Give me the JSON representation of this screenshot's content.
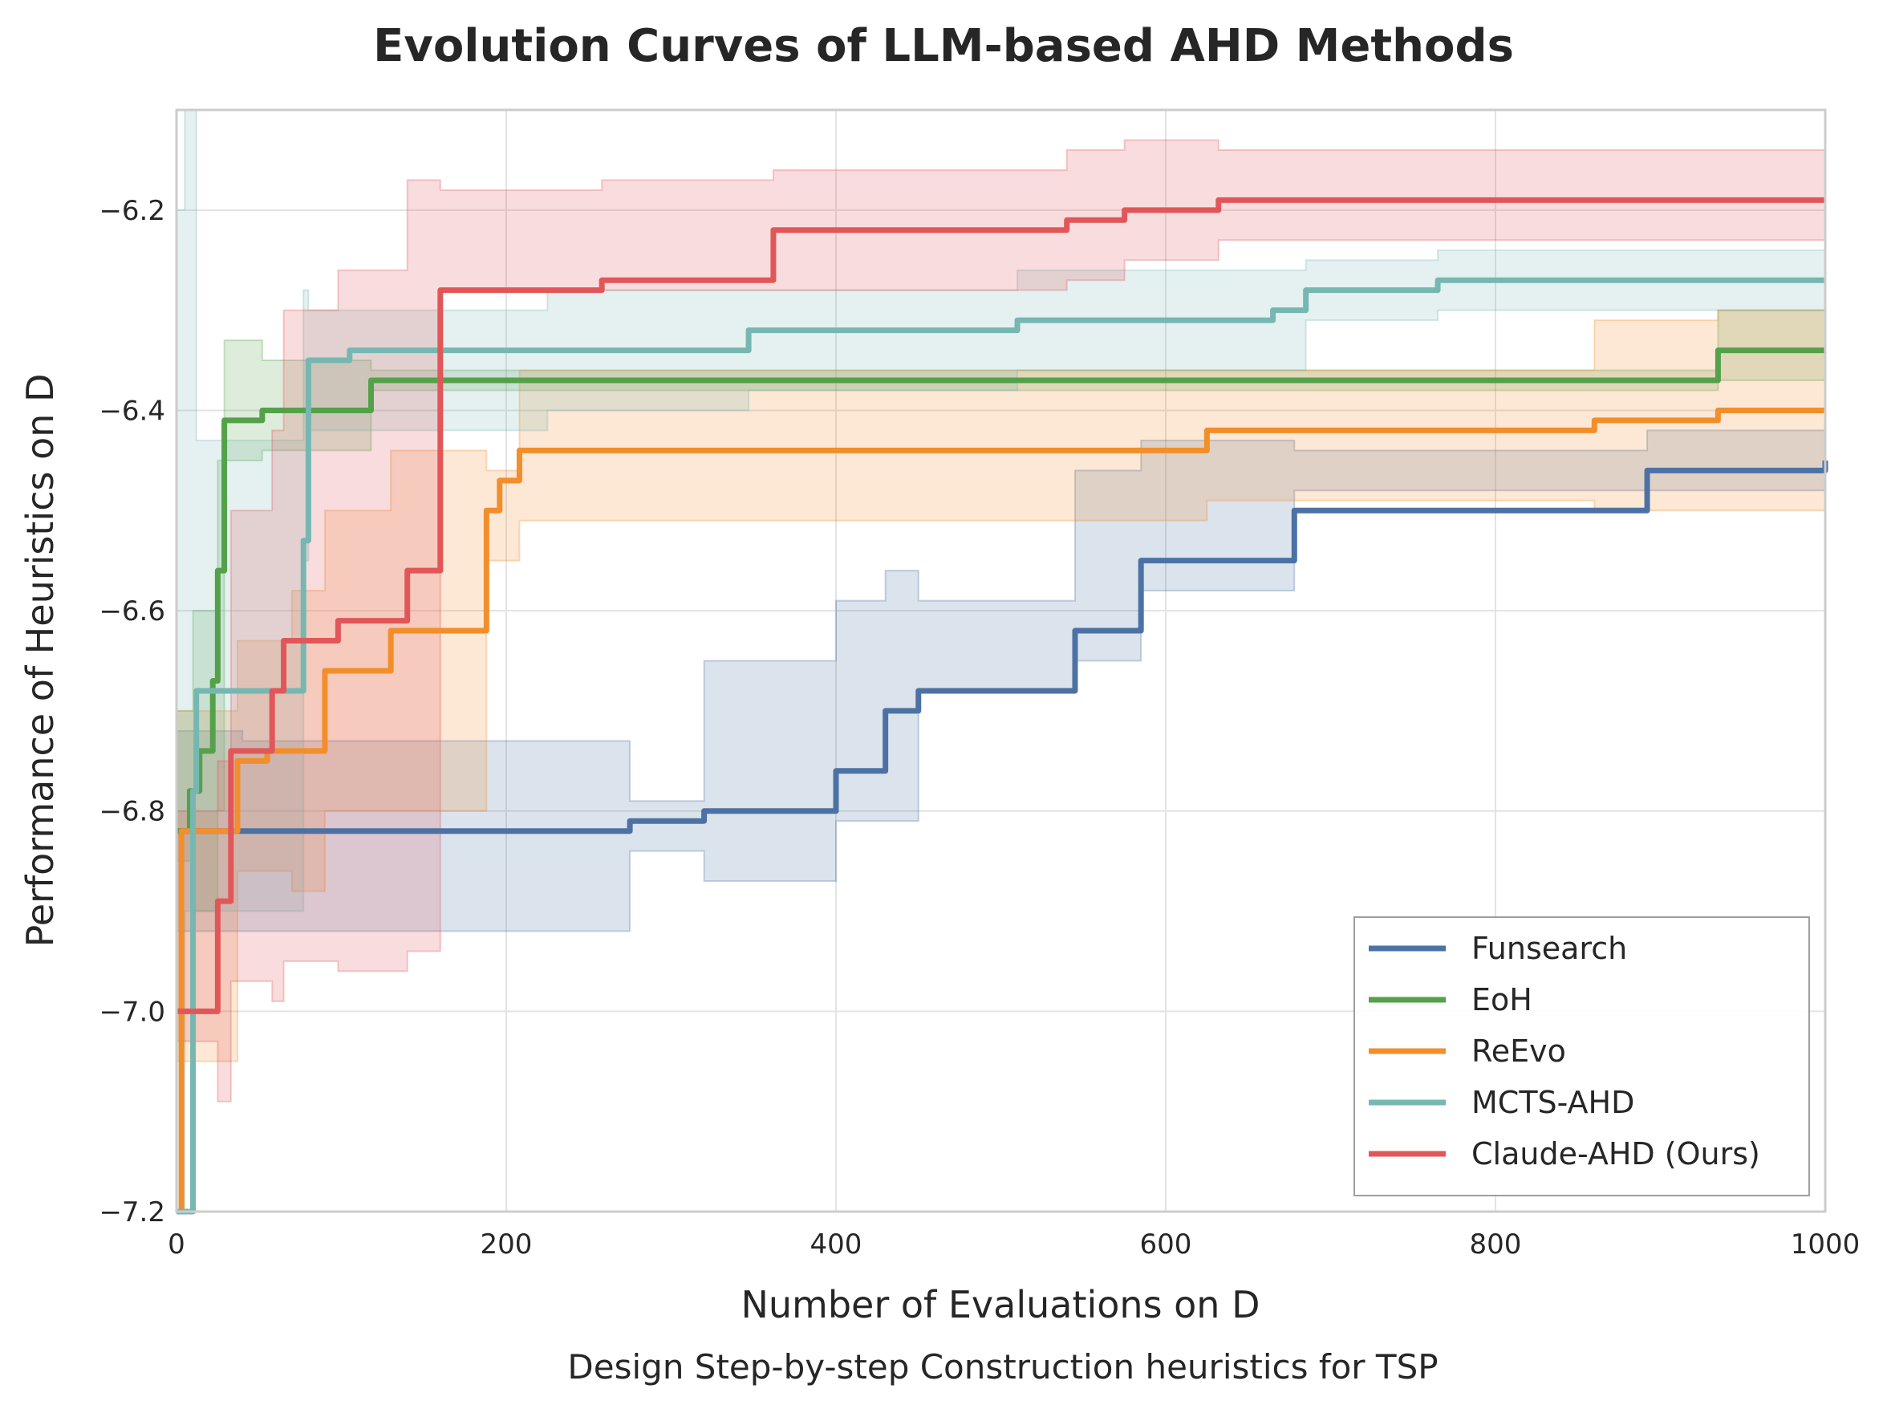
{
  "chart_data": {
    "type": "line",
    "title": "Evolution Curves of LLM-based AHD Methods",
    "xlabel": "Number of Evaluations on D",
    "ylabel": "Performance of Heuristics on D",
    "caption": "Design Step-by-step Construction heuristics for TSP",
    "xlim": [
      0,
      1000
    ],
    "ylim": [
      -7.2,
      -6.1
    ],
    "xticks": [
      0,
      200,
      400,
      600,
      800,
      1000
    ],
    "yticks": [
      -7.2,
      -7.0,
      -6.8,
      -6.6,
      -6.4,
      -6.2
    ],
    "grid": true,
    "legend_position": "bottom-right",
    "series": [
      {
        "name": "Funsearch",
        "color": "#4c72a4",
        "points": [
          [
            0,
            -6.82
          ],
          [
            210,
            -6.82
          ],
          [
            275,
            -6.81
          ],
          [
            320,
            -6.8
          ],
          [
            400,
            -6.76
          ],
          [
            430,
            -6.7
          ],
          [
            450,
            -6.68
          ],
          [
            545,
            -6.62
          ],
          [
            585,
            -6.55
          ],
          [
            678,
            -6.5
          ],
          [
            892,
            -6.46
          ],
          [
            1000,
            -6.45
          ]
        ],
        "band": [
          [
            0,
            -6.92,
            -6.72
          ],
          [
            40,
            -6.92,
            -6.73
          ],
          [
            275,
            -6.84,
            -6.79
          ],
          [
            320,
            -6.87,
            -6.65
          ],
          [
            400,
            -6.81,
            -6.59
          ],
          [
            430,
            -6.81,
            -6.56
          ],
          [
            450,
            -6.68,
            -6.59
          ],
          [
            545,
            -6.65,
            -6.46
          ],
          [
            585,
            -6.58,
            -6.43
          ],
          [
            678,
            -6.48,
            -6.44
          ],
          [
            892,
            -6.48,
            -6.42
          ],
          [
            1000,
            -6.48,
            -6.42
          ]
        ]
      },
      {
        "name": "EoH",
        "color": "#55a14a",
        "points": [
          [
            0,
            -6.82
          ],
          [
            8,
            -6.78
          ],
          [
            14,
            -6.74
          ],
          [
            22,
            -6.67
          ],
          [
            25,
            -6.56
          ],
          [
            29,
            -6.41
          ],
          [
            52,
            -6.4
          ],
          [
            118,
            -6.37
          ],
          [
            935,
            -6.34
          ],
          [
            1000,
            -6.34
          ]
        ],
        "band": [
          [
            0,
            -6.85,
            -6.7
          ],
          [
            10,
            -6.9,
            -6.6
          ],
          [
            25,
            -6.8,
            -6.45
          ],
          [
            29,
            -6.45,
            -6.33
          ],
          [
            52,
            -6.44,
            -6.35
          ],
          [
            118,
            -6.38,
            -6.36
          ],
          [
            935,
            -6.37,
            -6.3
          ],
          [
            1000,
            -6.37,
            -6.3
          ]
        ]
      },
      {
        "name": "ReEvo",
        "color": "#f28e2b",
        "points": [
          [
            0,
            -7.25
          ],
          [
            3,
            -6.82
          ],
          [
            37,
            -6.75
          ],
          [
            55,
            -6.74
          ],
          [
            90,
            -6.66
          ],
          [
            130,
            -6.62
          ],
          [
            188,
            -6.5
          ],
          [
            196,
            -6.47
          ],
          [
            208,
            -6.44
          ],
          [
            570,
            -6.44
          ],
          [
            625,
            -6.42
          ],
          [
            860,
            -6.41
          ],
          [
            935,
            -6.4
          ],
          [
            1000,
            -6.4
          ]
        ],
        "band": [
          [
            0,
            -7.05,
            -6.7
          ],
          [
            37,
            -6.86,
            -6.63
          ],
          [
            70,
            -6.88,
            -6.58
          ],
          [
            90,
            -6.8,
            -6.5
          ],
          [
            130,
            -6.8,
            -6.44
          ],
          [
            188,
            -6.55,
            -6.46
          ],
          [
            208,
            -6.51,
            -6.36
          ],
          [
            625,
            -6.49,
            -6.36
          ],
          [
            860,
            -6.5,
            -6.31
          ],
          [
            935,
            -6.5,
            -6.3
          ],
          [
            1000,
            -6.5,
            -6.3
          ]
        ]
      },
      {
        "name": "MCTS-AHD",
        "color": "#76b7b2",
        "points": [
          [
            0,
            -7.25
          ],
          [
            10,
            -6.78
          ],
          [
            12,
            -6.68
          ],
          [
            77,
            -6.53
          ],
          [
            80,
            -6.35
          ],
          [
            105,
            -6.34
          ],
          [
            225,
            -6.34
          ],
          [
            347,
            -6.32
          ],
          [
            510,
            -6.31
          ],
          [
            665,
            -6.3
          ],
          [
            685,
            -6.28
          ],
          [
            765,
            -6.27
          ],
          [
            1000,
            -6.27
          ]
        ],
        "band": [
          [
            0,
            -7.2,
            -6.2
          ],
          [
            5,
            -6.9,
            -6.1
          ],
          [
            12,
            -6.9,
            -6.43
          ],
          [
            77,
            -6.55,
            -6.28
          ],
          [
            80,
            -6.42,
            -6.3
          ],
          [
            225,
            -6.4,
            -6.28
          ],
          [
            347,
            -6.38,
            -6.28
          ],
          [
            510,
            -6.36,
            -6.26
          ],
          [
            685,
            -6.31,
            -6.25
          ],
          [
            765,
            -6.3,
            -6.24
          ],
          [
            1000,
            -6.3,
            -6.24
          ]
        ]
      },
      {
        "name": "Claude-AHD (Ours)",
        "color": "#e15759",
        "points": [
          [
            0,
            -7.0
          ],
          [
            25,
            -6.89
          ],
          [
            33,
            -6.74
          ],
          [
            58,
            -6.68
          ],
          [
            65,
            -6.63
          ],
          [
            98,
            -6.61
          ],
          [
            140,
            -6.56
          ],
          [
            160,
            -6.28
          ],
          [
            258,
            -6.27
          ],
          [
            362,
            -6.22
          ],
          [
            540,
            -6.21
          ],
          [
            560,
            -6.21
          ],
          [
            575,
            -6.2
          ],
          [
            632,
            -6.19
          ],
          [
            1000,
            -6.19
          ]
        ],
        "band": [
          [
            0,
            -7.03,
            -6.8
          ],
          [
            25,
            -7.09,
            -6.75
          ],
          [
            33,
            -6.97,
            -6.5
          ],
          [
            58,
            -6.99,
            -6.42
          ],
          [
            65,
            -6.95,
            -6.3
          ],
          [
            98,
            -6.96,
            -6.26
          ],
          [
            140,
            -6.94,
            -6.17
          ],
          [
            160,
            -6.28,
            -6.18
          ],
          [
            258,
            -6.28,
            -6.17
          ],
          [
            362,
            -6.28,
            -6.16
          ],
          [
            540,
            -6.27,
            -6.14
          ],
          [
            575,
            -6.25,
            -6.13
          ],
          [
            632,
            -6.23,
            -6.14
          ],
          [
            1000,
            -6.23,
            -6.14
          ]
        ]
      }
    ]
  }
}
